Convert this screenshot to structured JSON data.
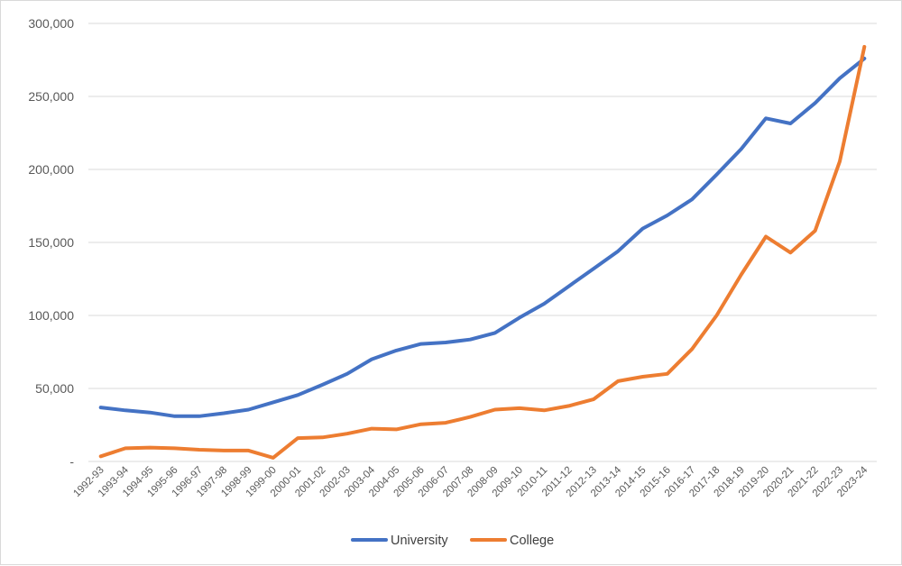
{
  "chart_data": {
    "type": "line",
    "title": "",
    "xlabel": "",
    "ylabel": "",
    "ylim": [
      0,
      300000
    ],
    "yticks": [
      {
        "value": 0,
        "label": "-"
      },
      {
        "value": 50000,
        "label": "50,000"
      },
      {
        "value": 100000,
        "label": "100,000"
      },
      {
        "value": 150000,
        "label": "150,000"
      },
      {
        "value": 200000,
        "label": "200,000"
      },
      {
        "value": 250000,
        "label": "250,000"
      },
      {
        "value": 300000,
        "label": "300,000"
      }
    ],
    "grid": true,
    "legend_position": "bottom",
    "categories": [
      "1992-93",
      "1993-94",
      "1994-95",
      "1995-96",
      "1996-97",
      "1997-98",
      "1998-99",
      "1999-00",
      "2000-01",
      "2001-02",
      "2002-03",
      "2003-04",
      "2004-05",
      "2005-06",
      "2006-07",
      "2007-08",
      "2008-09",
      "2009-10",
      "2010-11",
      "2011-12",
      "2012-13",
      "2013-14",
      "2014-15",
      "2015-16",
      "2016-17",
      "2017-18",
      "2018-19",
      "2019-20",
      "2020-21",
      "2021-22",
      "2022-23",
      "2023-24"
    ],
    "series": [
      {
        "name": "University",
        "color": "#4472C4",
        "values": [
          37000,
          35000,
          33500,
          31000,
          31000,
          33000,
          35500,
          40500,
          45500,
          52500,
          60000,
          70000,
          76000,
          80500,
          81500,
          83500,
          88000,
          98500,
          108000,
          120000,
          132000,
          144000,
          159500,
          168500,
          179500,
          196500,
          214000,
          235000,
          231500,
          245500,
          262500,
          276000
        ]
      },
      {
        "name": "College",
        "color": "#ED7D31",
        "values": [
          3500,
          9000,
          9500,
          9000,
          8000,
          7500,
          7500,
          2500,
          16000,
          16500,
          19000,
          22500,
          22000,
          25500,
          26500,
          30500,
          35500,
          36500,
          35000,
          38000,
          42500,
          55000,
          58000,
          60000,
          77000,
          100000,
          128000,
          154000,
          143000,
          158000,
          205500,
          284000
        ]
      }
    ]
  }
}
